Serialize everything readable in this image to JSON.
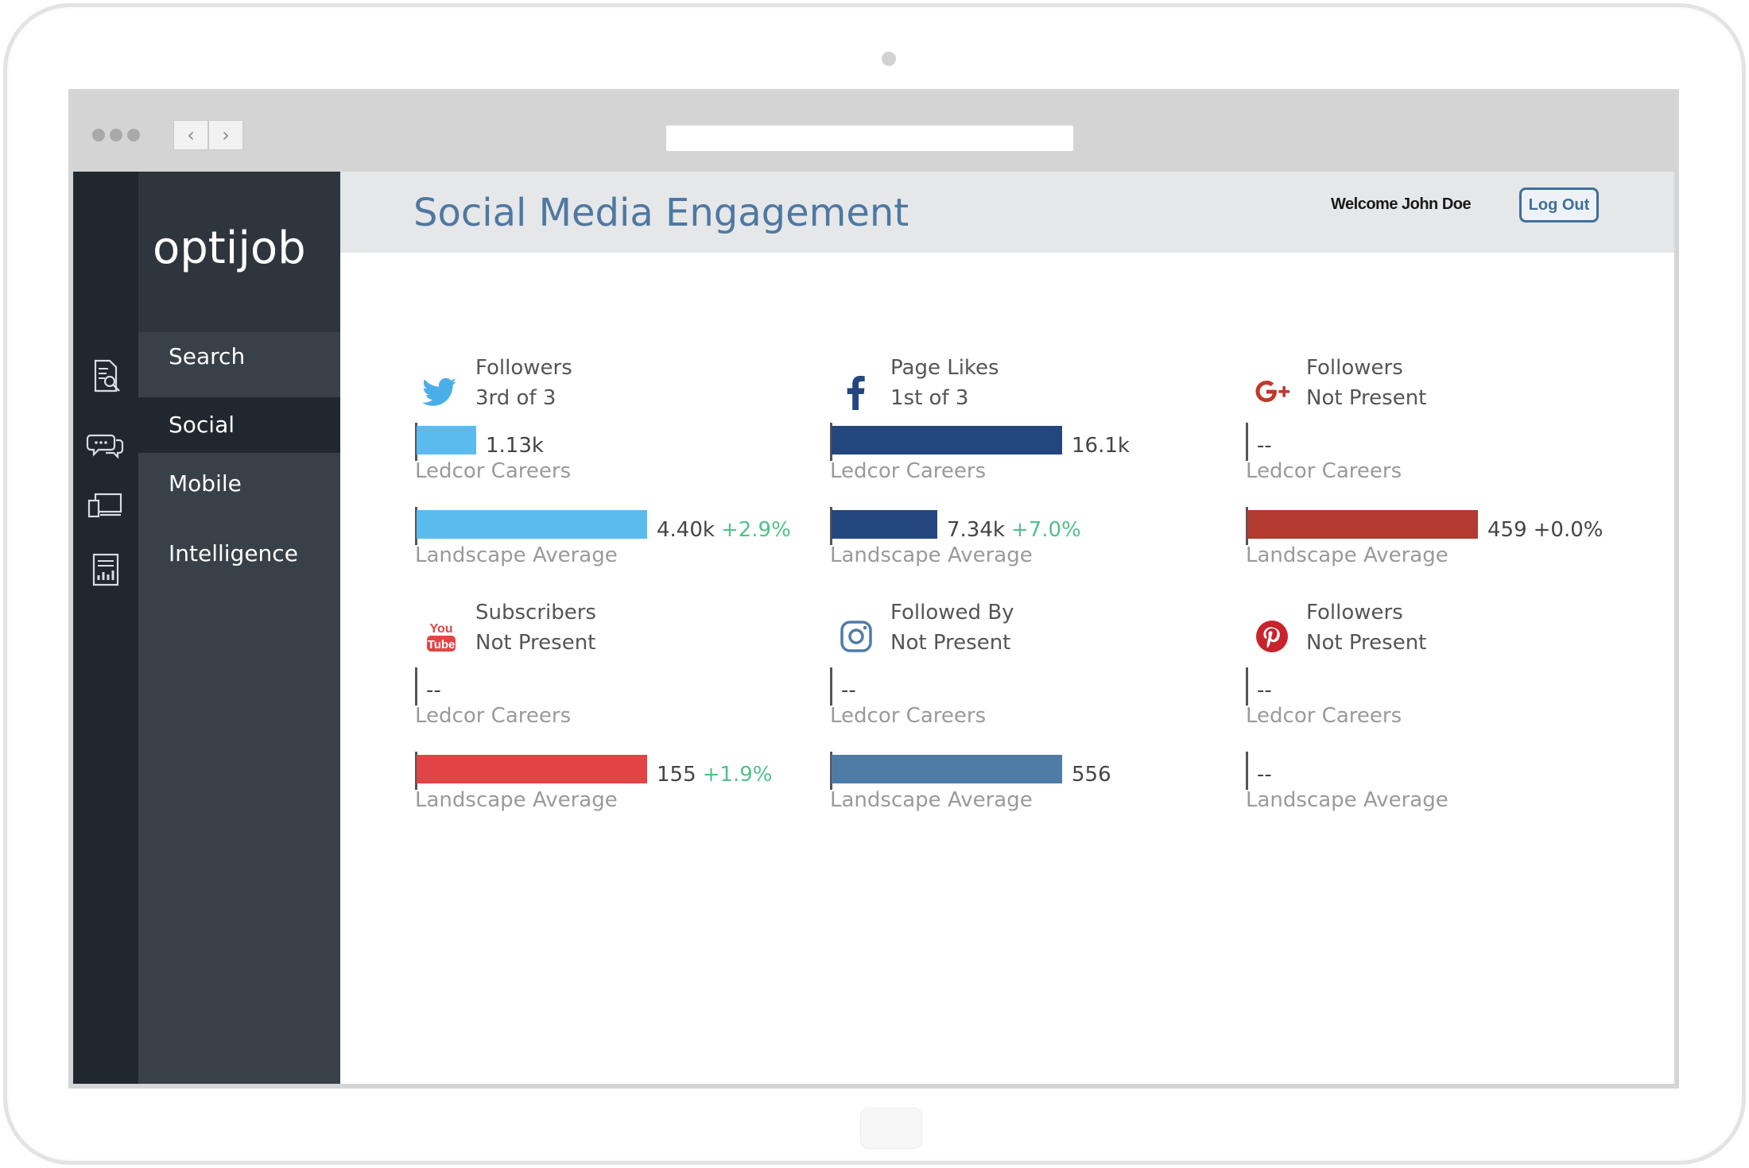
{
  "app": {
    "logo": "optijob",
    "title": "Social Media Engagement",
    "welcome": "Welcome John Doe",
    "logout_label": "Log Out"
  },
  "menu": [
    {
      "label": "Search",
      "icon": "search-document-icon"
    },
    {
      "label": "Social",
      "icon": "chat-bubbles-icon",
      "active": true
    },
    {
      "label": "Mobile",
      "icon": "devices-icon"
    },
    {
      "label": "Intelligence",
      "icon": "report-chart-icon"
    }
  ],
  "captions": {
    "company": "Ledcor Careers",
    "average": "Landscape Average"
  },
  "platforms": [
    {
      "key": "twitter",
      "icon": "twitter-icon",
      "color": "#5bbbef",
      "metric": "Followers",
      "rank": "3rd of 3",
      "company": {
        "value": "1.13k",
        "fraction": 0.26
      },
      "average": {
        "value": "4.40k",
        "change": "+2.9%",
        "fraction": 1.0
      }
    },
    {
      "key": "facebook",
      "icon": "facebook-icon",
      "color": "#23467f",
      "metric": "Page Likes",
      "rank": "1st of 3",
      "company": {
        "value": "16.1k",
        "fraction": 1.0
      },
      "average": {
        "value": "7.34k",
        "change": "+7.0%",
        "fraction": 0.46
      }
    },
    {
      "key": "googleplus",
      "icon": "google-plus-icon",
      "color": "#b23a30",
      "metric": "Followers",
      "rank": "Not Present",
      "company": {
        "value": "--",
        "fraction": 0
      },
      "average": {
        "value": "459",
        "change": "+0.0%",
        "fraction": 1.0,
        "neutral": true
      }
    },
    {
      "key": "youtube",
      "icon": "youtube-icon",
      "color": "#e24446",
      "metric": "Subscribers",
      "rank": "Not Present",
      "company": {
        "value": "--",
        "fraction": 0
      },
      "average": {
        "value": "155",
        "change": "+1.9%",
        "fraction": 1.0
      }
    },
    {
      "key": "instagram",
      "icon": "instagram-icon",
      "color": "#4f7ca7",
      "metric": "Followed By",
      "rank": "Not Present",
      "company": {
        "value": "--",
        "fraction": 0
      },
      "average": {
        "value": "556",
        "change": "",
        "fraction": 1.0
      }
    },
    {
      "key": "pinterest",
      "icon": "pinterest-icon",
      "color": "#c8232c",
      "metric": "Followers",
      "rank": "Not Present",
      "company": {
        "value": "--",
        "fraction": 0
      },
      "average": {
        "value": "--",
        "change": "",
        "fraction": 0
      }
    }
  ]
}
